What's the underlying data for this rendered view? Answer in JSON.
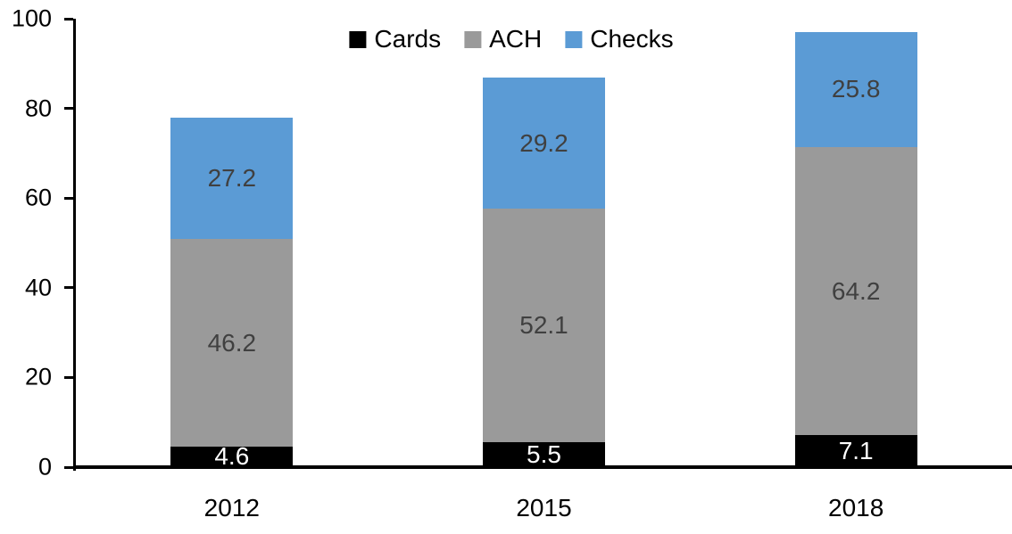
{
  "chart_data": {
    "type": "bar",
    "stacked": true,
    "title": "",
    "xlabel": "",
    "ylabel": "",
    "categories": [
      "2012",
      "2015",
      "2018"
    ],
    "series": [
      {
        "name": "Cards",
        "color": "#000000",
        "label_color": "#FFFFFF",
        "values": [
          4.6,
          5.5,
          7.1
        ]
      },
      {
        "name": "ACH",
        "color": "#9A9A9A",
        "label_color": "#404040",
        "values": [
          46.2,
          52.1,
          64.2
        ]
      },
      {
        "name": "Checks",
        "color": "#5B9BD5",
        "label_color": "#404040",
        "values": [
          27.2,
          29.2,
          25.8
        ]
      }
    ],
    "ylim": [
      0,
      100
    ],
    "yticks": [
      0,
      20,
      40,
      60,
      80,
      100
    ],
    "legend_position": "top-center",
    "legend_labels": [
      "Cards",
      "ACH",
      "Checks"
    ],
    "grid": false,
    "axis_color": "#000000",
    "tick_label_color": "#000000"
  }
}
